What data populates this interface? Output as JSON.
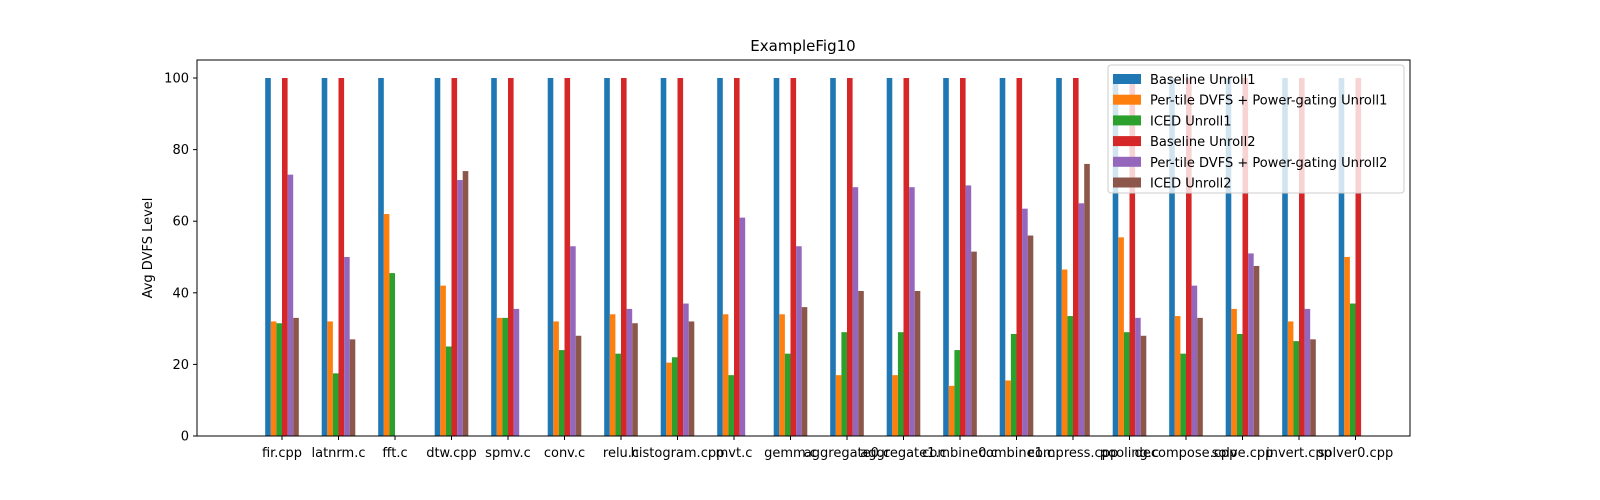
{
  "chart_data": {
    "type": "bar",
    "title": "ExampleFig10",
    "xlabel": "",
    "ylabel": "Avg DVFS Level",
    "ylim": [
      0,
      105
    ],
    "yticks": [
      0,
      20,
      40,
      60,
      80,
      100
    ],
    "grid": false,
    "legend_position": "top-right",
    "categories": [
      "fir.cpp",
      "latnrm.c",
      "fft.c",
      "dtw.cpp",
      "spmv.c",
      "conv.c",
      "relu.c",
      "histogram.cpp",
      "mvt.c",
      "gemm.c",
      "aggregate0.c",
      "aggregate1.c",
      "combine0.c",
      "combine1.c",
      "compress.cpp",
      "pooling.c",
      "decompose.cpp",
      "solve.cpp",
      "invert.cpp",
      "solver0.cpp"
    ],
    "series": [
      {
        "name": "Baseline Unroll1",
        "color": "#1f77b4",
        "values": [
          100,
          100,
          100,
          100,
          100,
          100,
          100,
          100,
          100,
          100,
          100,
          100,
          100,
          100,
          100,
          100,
          100,
          100,
          100,
          100
        ]
      },
      {
        "name": "Per-tile DVFS + Power-gating Unroll1",
        "color": "#ff7f0e",
        "values": [
          32,
          32,
          62,
          42,
          33,
          32,
          34,
          20.5,
          34,
          34,
          17,
          17,
          14,
          15.5,
          46.5,
          55.5,
          33.5,
          35.5,
          32,
          50
        ]
      },
      {
        "name": "ICED Unroll1",
        "color": "#2ca02c",
        "values": [
          31.5,
          17.5,
          45.5,
          25,
          33,
          24,
          23,
          22,
          17,
          23,
          29,
          29,
          24,
          28.5,
          33.5,
          29,
          23,
          28.5,
          26.5,
          37
        ]
      },
      {
        "name": "Baseline Unroll2",
        "color": "#d62728",
        "values": [
          100,
          100,
          null,
          100,
          100,
          100,
          100,
          100,
          100,
          100,
          100,
          100,
          100,
          100,
          100,
          100,
          100,
          100,
          100,
          100
        ]
      },
      {
        "name": "Per-tile DVFS + Power-gating Unroll2",
        "color": "#9467bd",
        "values": [
          73,
          50,
          null,
          71.5,
          35.5,
          53,
          35.5,
          37,
          61,
          53,
          69.5,
          69.5,
          70,
          63.5,
          65,
          33,
          42,
          51,
          35.5,
          null
        ]
      },
      {
        "name": "ICED Unroll2",
        "color": "#8c564b",
        "values": [
          33,
          27,
          null,
          74,
          null,
          28,
          31.5,
          32,
          null,
          36,
          40.5,
          40.5,
          51.5,
          56,
          76,
          28,
          33,
          47.5,
          27,
          null
        ]
      }
    ]
  }
}
